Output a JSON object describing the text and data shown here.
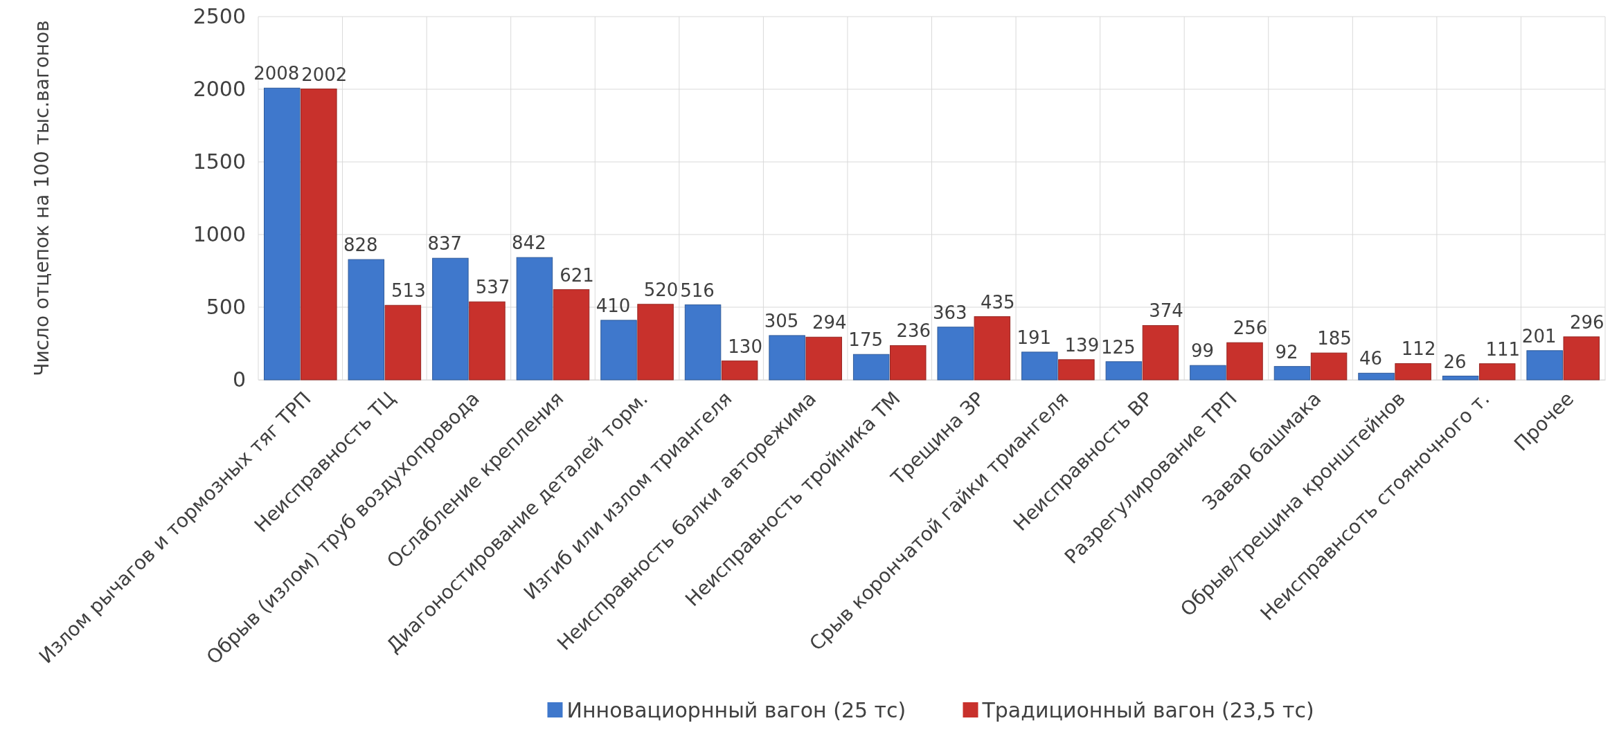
{
  "chart_data": {
    "type": "bar",
    "ylabel": "Число отцепок на 100 тыс.вагонов",
    "categories": [
      "Излом рычагов и тормозных тяг ТРП",
      "Неисправность ТЦ",
      "Обрыв (излом) труб воздухопровода",
      "Ослабление крепления",
      "Диагоностирование деталей торм.",
      "Изгиб или излом триангеля",
      "Неисправность балки авторежима",
      "Неисправность тройника ТМ",
      "Трещина ЗР",
      "Срыв корончатой гайки триангеля",
      "Неисправность ВР",
      "Разрегулирование ТРП",
      "Завар башмака",
      "Обрыв/трещина кронштейнов",
      "Неисправнсоть стояночного т.",
      "Прочее"
    ],
    "series": [
      {
        "name": "Инновациорнный вагон (25 тс)",
        "color": "#3f78cc",
        "values": [
          2008,
          828,
          837,
          842,
          410,
          516,
          305,
          175,
          363,
          191,
          125,
          99,
          92,
          46,
          26,
          201
        ]
      },
      {
        "name": "Традиционный вагон (23,5 тс)",
        "color": "#c8312c",
        "values": [
          2002,
          513,
          537,
          621,
          520,
          130,
          294,
          236,
          435,
          139,
          374,
          256,
          185,
          112,
          111,
          296
        ]
      }
    ],
    "ylim": [
      0,
      2500
    ],
    "yticks": [
      0,
      500,
      1000,
      1500,
      2000,
      2500
    ],
    "grid": true,
    "legend": "bottom",
    "data_labels": true
  }
}
